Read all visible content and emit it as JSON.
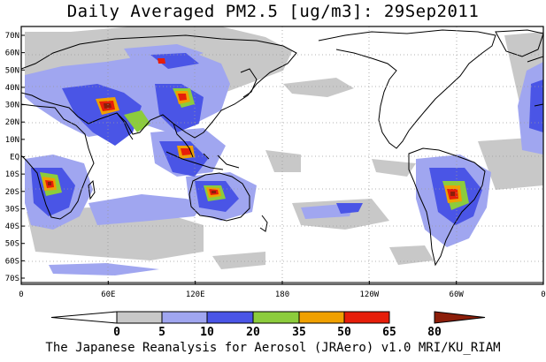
{
  "title": "Daily Averaged PM2.5 [ug/m3]: 29Sep2011",
  "footer": "The Japanese Reanalysis for Aerosol (JRAero) v1.0 MRI/KU_RIAM",
  "map": {
    "lon_labels": [
      "0",
      "60E",
      "120E",
      "180",
      "120W",
      "60W",
      "0"
    ],
    "lat_labels": [
      "70N",
      "60N",
      "50N",
      "40N",
      "30N",
      "20N",
      "10N",
      "EQ",
      "10S",
      "20S",
      "30S",
      "40S",
      "50S",
      "60S",
      "70S"
    ]
  },
  "legend": {
    "bins": [
      {
        "color": "#ffffff"
      },
      {
        "color": "#c8c8c8"
      },
      {
        "color": "#a0a6f0"
      },
      {
        "color": "#4a55e6"
      },
      {
        "color": "#8ccc3c"
      },
      {
        "color": "#f0a000"
      },
      {
        "color": "#e61e0a"
      },
      {
        "color": "#8c1e0a"
      }
    ],
    "labels": [
      "0",
      "5",
      "10",
      "20",
      "35",
      "50",
      "65",
      "80"
    ]
  }
}
